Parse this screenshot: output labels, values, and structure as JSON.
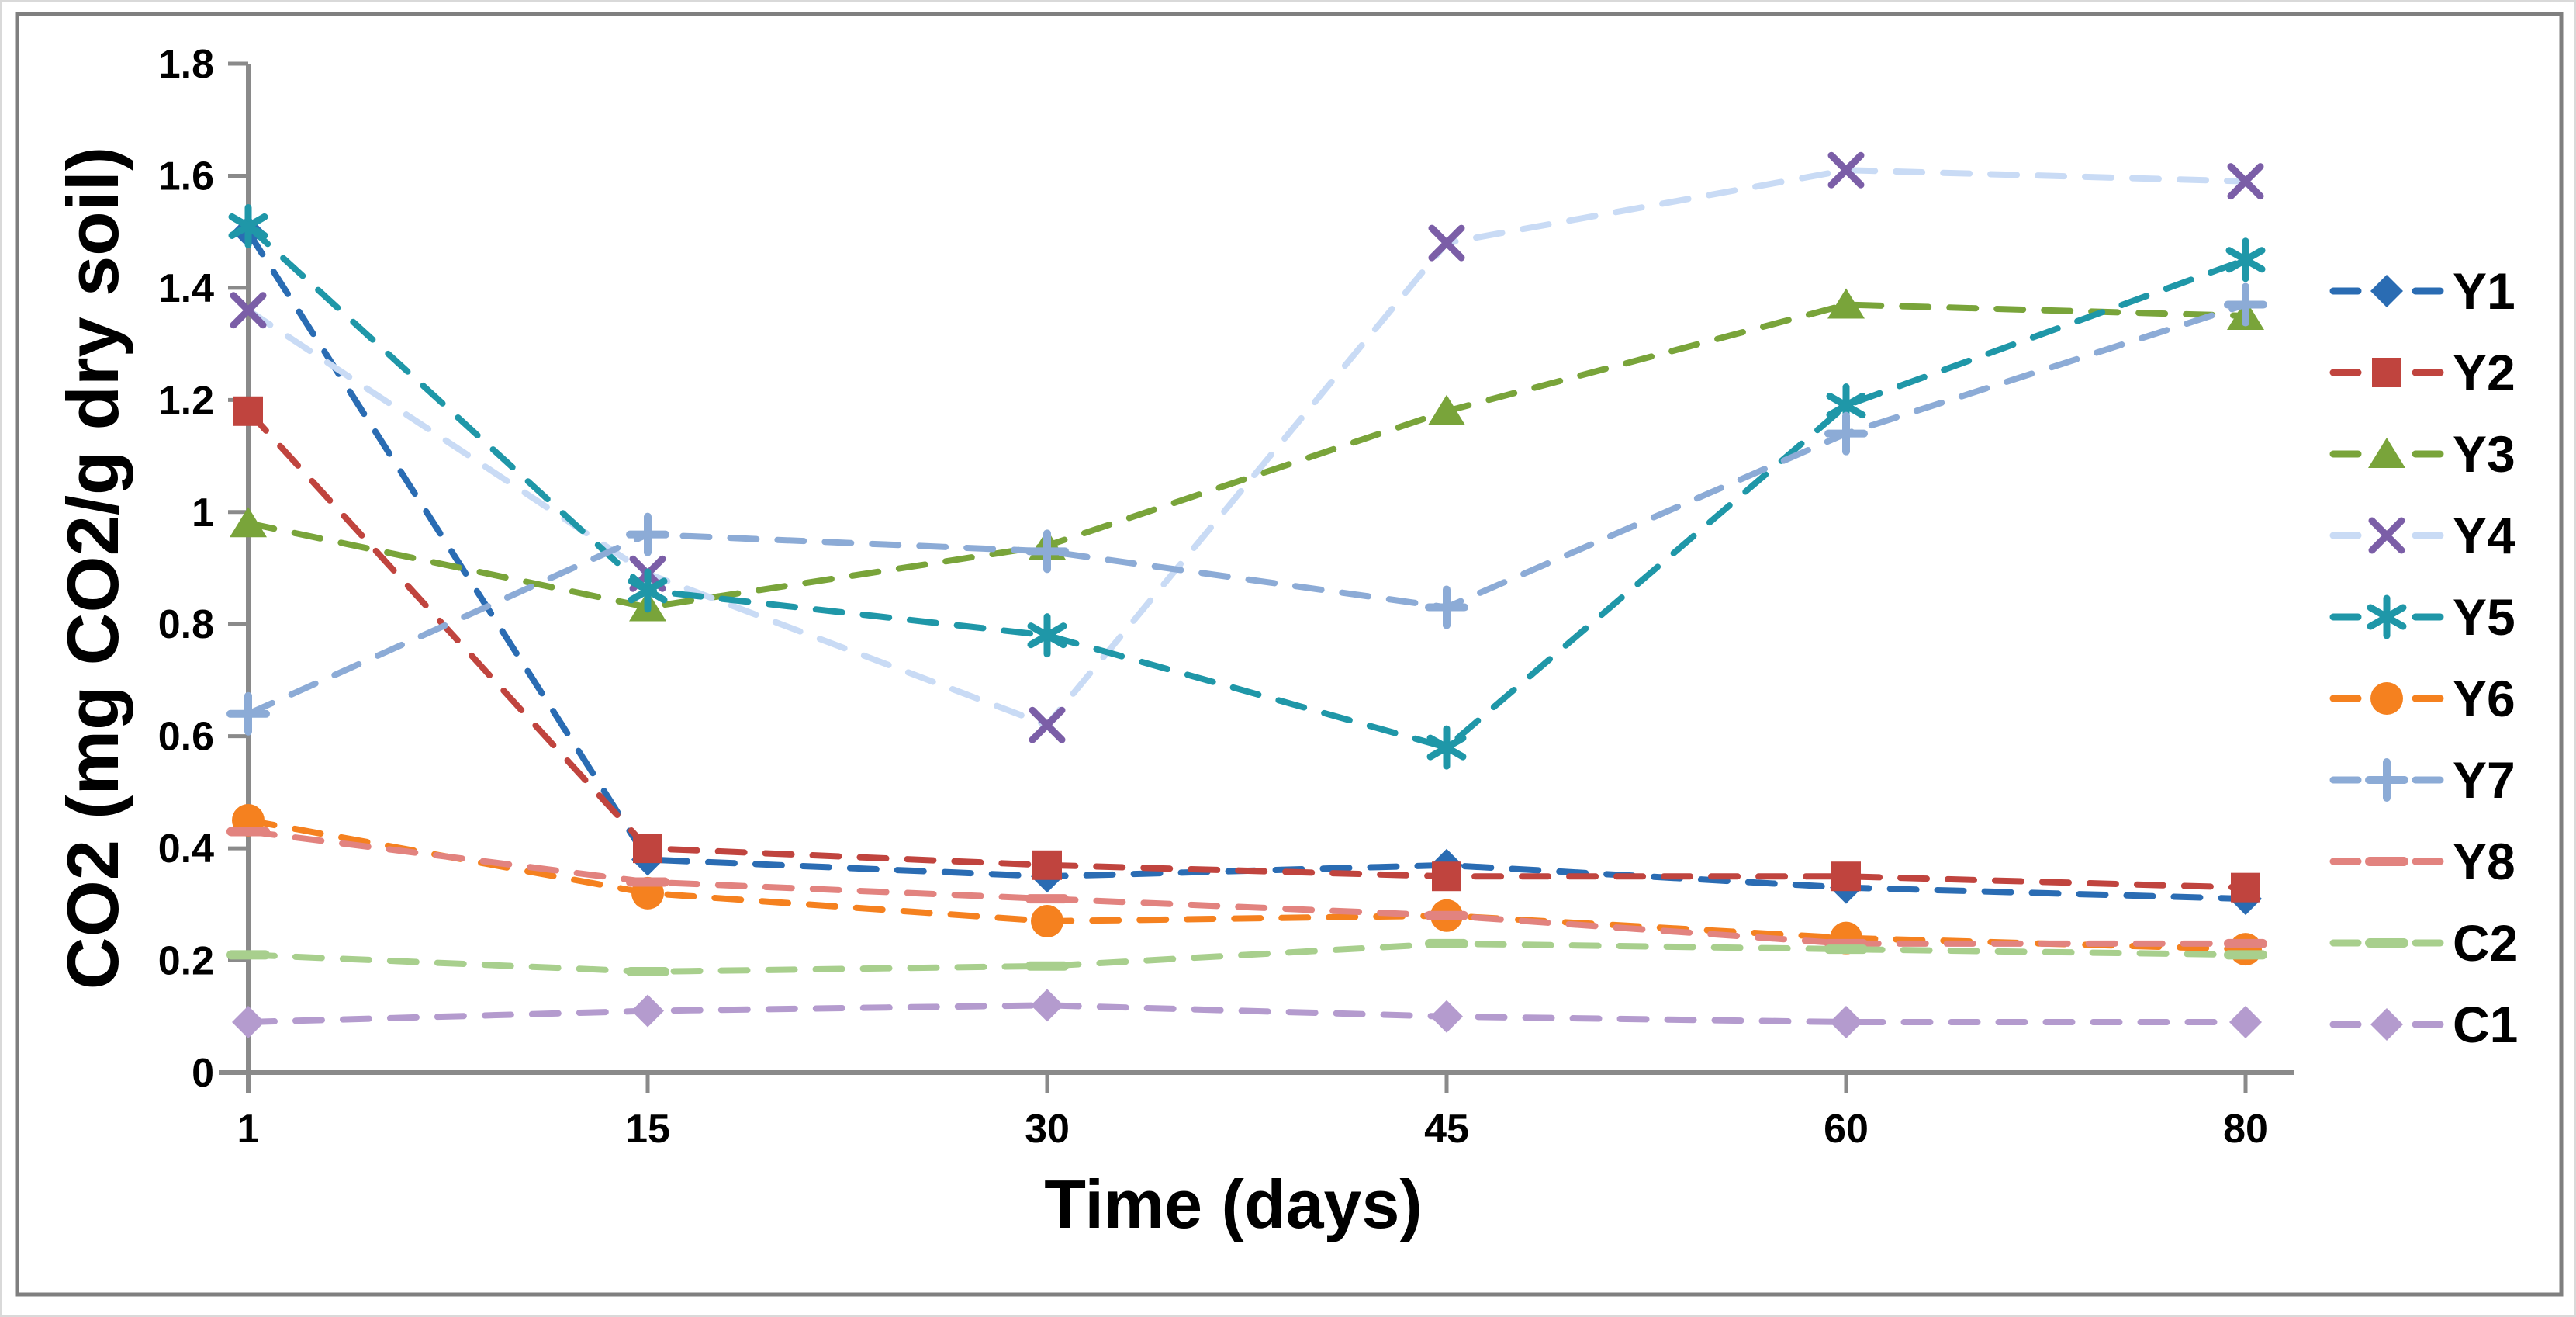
{
  "figure": {
    "background": "#ffffff",
    "border_color": "#7f7f7f",
    "edge_color": "#d9d9d9",
    "axis_color": "#8a8a8a",
    "text_color": "#000000"
  },
  "chart_data": {
    "type": "line",
    "title": "",
    "xlabel": "Time (days)",
    "ylabel": "CO2 (mg CO2/g dry soil)",
    "x_categories": [
      "1",
      "15",
      "30",
      "45",
      "60",
      "80"
    ],
    "x_values": [
      1,
      15,
      30,
      45,
      60,
      80
    ],
    "y_ticks": [
      "0",
      "0.2",
      "0.4",
      "0.6",
      "0.8",
      "1",
      "1.2",
      "1.4",
      "1.6",
      "1.8"
    ],
    "ylim": [
      0,
      1.8
    ],
    "grid": false,
    "line_style": "dashed",
    "legend_position": "right",
    "series": [
      {
        "name": "Y1",
        "marker": "diamond",
        "color": "#2a6cb3",
        "line_color": "#2a6cb3",
        "values": [
          1.5,
          0.38,
          0.35,
          0.37,
          0.33,
          0.31
        ]
      },
      {
        "name": "Y2",
        "marker": "square",
        "color": "#c0443e",
        "line_color": "#c0443e",
        "values": [
          1.18,
          0.4,
          0.37,
          0.35,
          0.35,
          0.33
        ]
      },
      {
        "name": "Y3",
        "marker": "triangle",
        "color": "#79a43a",
        "line_color": "#79a43a",
        "values": [
          0.98,
          0.83,
          0.94,
          1.18,
          1.37,
          1.35
        ]
      },
      {
        "name": "Y4",
        "marker": "x",
        "color": "#7b5ea7",
        "line_color": "#c9dbf5",
        "values": [
          1.36,
          0.89,
          0.62,
          1.48,
          1.61,
          1.59
        ]
      },
      {
        "name": "Y5",
        "marker": "asterisk",
        "color": "#1f97a8",
        "line_color": "#1f97a8",
        "values": [
          1.51,
          0.86,
          0.78,
          0.58,
          1.19,
          1.45
        ]
      },
      {
        "name": "Y6",
        "marker": "circle",
        "color": "#f5811f",
        "line_color": "#f5811f",
        "values": [
          0.45,
          0.32,
          0.27,
          0.28,
          0.24,
          0.22
        ]
      },
      {
        "name": "Y7",
        "marker": "plus",
        "color": "#8cabd6",
        "line_color": "#8cabd6",
        "values": [
          0.64,
          0.96,
          0.93,
          0.83,
          1.14,
          1.37
        ]
      },
      {
        "name": "Y8",
        "marker": "dash",
        "color": "#e2837f",
        "line_color": "#e2837f",
        "values": [
          0.43,
          0.34,
          0.31,
          0.28,
          0.23,
          0.23
        ]
      },
      {
        "name": "C2",
        "marker": "dash",
        "color": "#a8cf8d",
        "line_color": "#a8cf8d",
        "values": [
          0.21,
          0.18,
          0.19,
          0.23,
          0.22,
          0.21
        ]
      },
      {
        "name": "C1",
        "marker": "diamond",
        "color": "#b49bce",
        "line_color": "#b49bce",
        "values": [
          0.09,
          0.11,
          0.12,
          0.1,
          0.09,
          0.09
        ]
      }
    ]
  }
}
